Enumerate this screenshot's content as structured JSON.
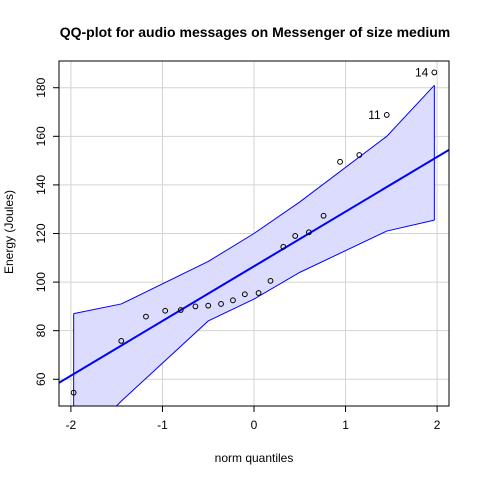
{
  "chart_data": {
    "type": "scatter",
    "title": "QQ-plot for audio messages on Messenger of size medium",
    "xlabel": "norm quantiles",
    "ylabel": "Energy (Joules)",
    "xlim": [
      -2.13,
      2.13
    ],
    "ylim": [
      49,
      191
    ],
    "x_ticks": [
      -2,
      -1,
      0,
      1,
      2
    ],
    "y_ticks": [
      60,
      80,
      100,
      120,
      140,
      160,
      180
    ],
    "grid": true,
    "points": [
      {
        "x": -1.97,
        "y": 54.5
      },
      {
        "x": -1.45,
        "y": 75.8
      },
      {
        "x": -1.18,
        "y": 85.8
      },
      {
        "x": -0.97,
        "y": 88.2
      },
      {
        "x": -0.8,
        "y": 88.5
      },
      {
        "x": -0.64,
        "y": 90.0
      },
      {
        "x": -0.5,
        "y": 90.3
      },
      {
        "x": -0.36,
        "y": 91.0
      },
      {
        "x": -0.23,
        "y": 92.5
      },
      {
        "x": -0.1,
        "y": 95.0
      },
      {
        "x": 0.05,
        "y": 95.5
      },
      {
        "x": 0.18,
        "y": 100.5
      },
      {
        "x": 0.32,
        "y": 114.5
      },
      {
        "x": 0.45,
        "y": 119.0
      },
      {
        "x": 0.6,
        "y": 120.5
      },
      {
        "x": 0.76,
        "y": 127.3
      },
      {
        "x": 0.94,
        "y": 149.5
      },
      {
        "x": 1.15,
        "y": 152.3
      },
      {
        "x": 1.45,
        "y": 168.8
      },
      {
        "x": 1.97,
        "y": 186.3
      }
    ],
    "labeled_points": [
      {
        "label": "11",
        "x": 1.45,
        "y": 168.8
      },
      {
        "label": "14",
        "x": 1.97,
        "y": 186.3
      }
    ],
    "reference_line": {
      "intercept": 106.5,
      "slope": 22.5
    },
    "envelope": {
      "x": [
        -1.97,
        -1.45,
        -0.5,
        0,
        0.5,
        1.45,
        1.97
      ],
      "upper": [
        87.0,
        91.0,
        108.5,
        120.0,
        133.0,
        160.0,
        181.0
      ],
      "lower": [
        31.0,
        51.0,
        84.0,
        93.0,
        104.0,
        121.0,
        125.5
      ]
    },
    "colors": {
      "band_fill": "#dcdcff",
      "band_edge": "#0000ff",
      "line": "#0000ff",
      "points": "#000000",
      "grid": "#d3d3d3"
    }
  }
}
